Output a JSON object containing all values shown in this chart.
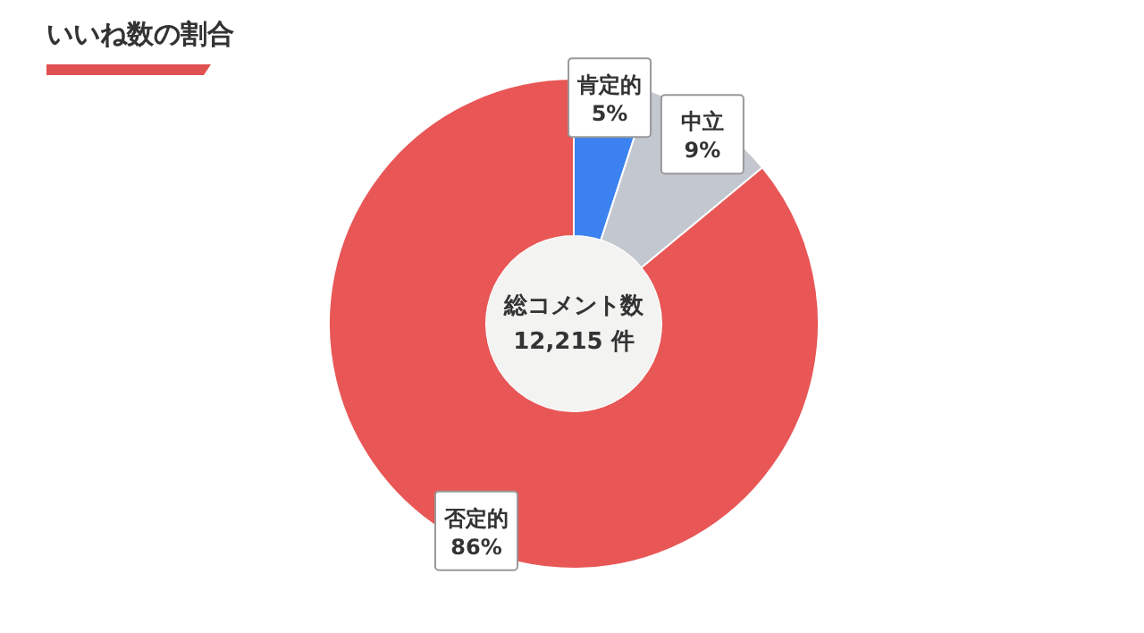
{
  "chart_data": {
    "type": "donut",
    "title": "いいね数の割合",
    "categories": [
      "肯定的",
      "中立",
      "否定的"
    ],
    "values": [
      5,
      9,
      86
    ],
    "value_labels": [
      "5%",
      "9%",
      "86%"
    ],
    "colors": [
      "#3b82f0",
      "#c3c7cf",
      "#e85656"
    ],
    "annotations": [
      "総コメント数",
      "12,215 件"
    ]
  }
}
